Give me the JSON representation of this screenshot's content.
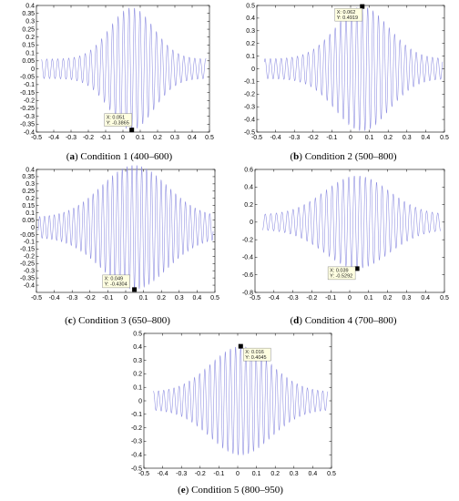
{
  "figure": {
    "panels": [
      {
        "letter": "a",
        "caption": "Condition 1 (400–600)"
      },
      {
        "letter": "b",
        "caption": "Condition 2 (500–800)"
      },
      {
        "letter": "c",
        "caption": "Condition 3 (650–800)"
      },
      {
        "letter": "d",
        "caption": "Condition 4 (700–800)"
      },
      {
        "letter": "e",
        "caption": "Condition 5 (800–950)"
      }
    ]
  },
  "colors": {
    "signal": "#8a8ae0",
    "tooltip_bg": "#ffffe1",
    "marker": "#000000"
  },
  "chart_data": [
    {
      "type": "line",
      "title": "",
      "xlabel": "",
      "ylabel": "",
      "xlim": [
        -0.5,
        0.5
      ],
      "ylim": [
        -0.4,
        0.4
      ],
      "xticks": [
        "-0.5",
        "-0.4",
        "-0.3",
        "-0.2",
        "-0.1",
        "0",
        "0.1",
        "0.2",
        "0.3",
        "0.4",
        "0.5"
      ],
      "yticks": [
        "-0.4",
        "-0.35",
        "-0.3",
        "-0.25",
        "-0.2",
        "-0.15",
        "-0.1",
        "-0.05",
        "0",
        "0.05",
        "0.1",
        "0.15",
        "0.2",
        "0.25",
        "0.3",
        "0.35",
        "0.4"
      ],
      "grid": false,
      "signal": {
        "x_range": [
          -0.47,
          0.48
        ],
        "peak_x": 0.051,
        "peak_amplitude": 0.3865,
        "cycles": 30,
        "envelope_width": 0.18
      },
      "marker": {
        "x": 0.051,
        "y": -0.3865,
        "label_x": "X: 0.051",
        "label_y": "Y: -0.3865"
      }
    },
    {
      "type": "line",
      "title": "",
      "xlabel": "",
      "ylabel": "",
      "xlim": [
        -0.5,
        0.5
      ],
      "ylim": [
        -0.5,
        0.5
      ],
      "xticks": [
        "-0.5",
        "-0.4",
        "-0.3",
        "-0.2",
        "-0.1",
        "0",
        "0.1",
        "0.2",
        "0.3",
        "0.4",
        "0.5"
      ],
      "yticks": [
        "-0.5",
        "-0.4",
        "-0.3",
        "-0.2",
        "-0.1",
        "0",
        "0.1",
        "0.2",
        "0.3",
        "0.4",
        "0.5"
      ],
      "grid": false,
      "signal": {
        "x_range": [
          -0.46,
          0.49
        ],
        "peak_x": 0.062,
        "peak_amplitude": 0.4919,
        "cycles": 33,
        "envelope_width": 0.2
      },
      "marker": {
        "x": 0.062,
        "y": 0.4919,
        "label_x": "X: 0.062",
        "label_y": "Y: 0.4919"
      }
    },
    {
      "type": "line",
      "title": "",
      "xlabel": "",
      "ylabel": "",
      "xlim": [
        -0.5,
        0.5
      ],
      "ylim": [
        -0.45,
        0.4
      ],
      "xticks": [
        "-0.5",
        "-0.4",
        "-0.3",
        "-0.2",
        "-0.1",
        "0",
        "0.1",
        "0.2",
        "0.3",
        "0.4",
        "0.5"
      ],
      "yticks": [
        "-0.4",
        "-0.35",
        "-0.3",
        "-0.25",
        "-0.2",
        "-0.15",
        "-0.1",
        "-0.05",
        "0",
        "0.05",
        "0.1",
        "0.15",
        "0.2",
        "0.25",
        "0.3",
        "0.35",
        "0.4"
      ],
      "grid": false,
      "signal": {
        "x_range": [
          -0.49,
          0.49
        ],
        "peak_x": 0.049,
        "peak_amplitude": 0.4304,
        "cycles": 36,
        "envelope_width": 0.26
      },
      "marker": {
        "x": 0.049,
        "y": -0.4304,
        "label_x": "X: 0.049",
        "label_y": "Y: -0.4304"
      }
    },
    {
      "type": "line",
      "title": "",
      "xlabel": "",
      "ylabel": "",
      "xlim": [
        -0.5,
        0.5
      ],
      "ylim": [
        -0.8,
        0.6
      ],
      "xticks": [
        "-0.5",
        "-0.4",
        "-0.3",
        "-0.2",
        "-0.1",
        "0",
        "0.1",
        "0.2",
        "0.3",
        "0.4",
        "0.5"
      ],
      "yticks": [
        "-0.8",
        "-0.6",
        "-0.4",
        "-0.2",
        "0",
        "0.2",
        "0.4",
        "0.6"
      ],
      "grid": false,
      "signal": {
        "x_range": [
          -0.46,
          0.48
        ],
        "peak_x": 0.039,
        "peak_amplitude": 0.5292,
        "cycles": 32,
        "envelope_width": 0.24
      },
      "marker": {
        "x": 0.039,
        "y": -0.5292,
        "label_x": "X: 0.039",
        "label_y": "Y: -0.5292"
      }
    },
    {
      "type": "line",
      "title": "",
      "xlabel": "",
      "ylabel": "",
      "xlim": [
        -0.5,
        0.5
      ],
      "ylim": [
        -0.5,
        0.5
      ],
      "xticks": [
        "-0.5",
        "-0.4",
        "-0.3",
        "-0.2",
        "-0.1",
        "0",
        "0.1",
        "0.2",
        "0.3",
        "0.4",
        "0.5"
      ],
      "yticks": [
        "-0.5",
        "-0.4",
        "-0.3",
        "-0.2",
        "-0.1",
        "0",
        "0.1",
        "0.2",
        "0.3",
        "0.4",
        "0.5"
      ],
      "grid": false,
      "signal": {
        "x_range": [
          -0.45,
          0.48
        ],
        "peak_x": 0.016,
        "peak_amplitude": 0.4045,
        "cycles": 34,
        "envelope_width": 0.23
      },
      "marker": {
        "x": 0.016,
        "y": 0.4045,
        "label_x": "X: 0.016",
        "label_y": "Y: 0.4045"
      }
    }
  ]
}
